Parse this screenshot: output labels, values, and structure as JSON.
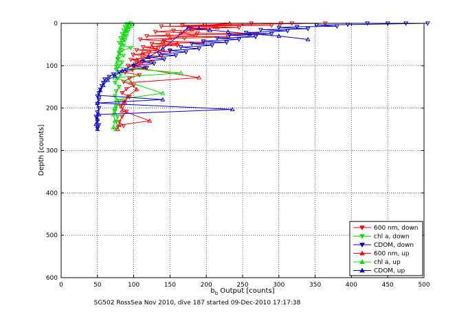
{
  "chart_data": {
    "type": "scatter",
    "xlabel_main": "b",
    "xlabel_sub": "b",
    "xlabel_rest": " Output [counts]",
    "ylabel": "Depth [counts]",
    "caption": "SG502 RossSea Nov 2010, dive 187 started 09-Dec-2010 17:17:38",
    "xlim": [
      0,
      500
    ],
    "ylim": [
      0,
      600
    ],
    "y_reversed": true,
    "grid": true,
    "grid_style": "dotted",
    "legend_position": "bottom-right",
    "x_ticks": [
      0,
      50,
      100,
      150,
      200,
      250,
      300,
      350,
      400,
      450,
      500
    ],
    "y_ticks": [
      0,
      100,
      200,
      300,
      400,
      500,
      600
    ],
    "series": [
      {
        "name": "600 nm, down",
        "color": "#ff0000",
        "marker": "triangle-down",
        "points": [
          [
            262,
            0
          ],
          [
            303,
            0
          ],
          [
            318,
            0
          ],
          [
            364,
            0
          ],
          [
            226,
            3
          ],
          [
            167,
            5
          ],
          [
            290,
            5
          ],
          [
            138,
            7
          ],
          [
            210,
            8
          ],
          [
            245,
            10
          ],
          [
            178,
            12
          ],
          [
            202,
            15
          ],
          [
            155,
            17
          ],
          [
            130,
            20
          ],
          [
            188,
            23
          ],
          [
            270,
            25
          ],
          [
            147,
            28
          ],
          [
            118,
            30
          ],
          [
            230,
            32
          ],
          [
            170,
            35
          ],
          [
            109,
            38
          ],
          [
            142,
            42
          ],
          [
            196,
            45
          ],
          [
            125,
            48
          ],
          [
            160,
            52
          ],
          [
            113,
            56
          ],
          [
            134,
            60
          ],
          [
            104,
            63
          ],
          [
            150,
            66
          ],
          [
            121,
            70
          ],
          [
            99,
            74
          ],
          [
            138,
            78
          ],
          [
            112,
            82
          ],
          [
            96,
            86
          ],
          [
            126,
            90
          ],
          [
            104,
            95
          ],
          [
            92,
            100
          ],
          [
            116,
            104
          ],
          [
            98,
            110
          ],
          [
            88,
            116
          ],
          [
            108,
            122
          ],
          [
            94,
            130
          ],
          [
            86,
            138
          ],
          [
            100,
            146
          ],
          [
            90,
            155
          ],
          [
            84,
            164
          ],
          [
            94,
            174
          ],
          [
            86,
            184
          ],
          [
            82,
            196
          ],
          [
            90,
            208
          ],
          [
            84,
            220
          ],
          [
            80,
            232
          ],
          [
            86,
            242
          ]
        ]
      },
      {
        "name": "chl a, down",
        "color": "#00dd00",
        "marker": "triangle-down",
        "points": [
          [
            96,
            0
          ],
          [
            90,
            2
          ],
          [
            98,
            5
          ],
          [
            88,
            8
          ],
          [
            94,
            12
          ],
          [
            86,
            16
          ],
          [
            92,
            20
          ],
          [
            84,
            25
          ],
          [
            90,
            30
          ],
          [
            82,
            35
          ],
          [
            88,
            40
          ],
          [
            80,
            46
          ],
          [
            86,
            52
          ],
          [
            96,
            58
          ],
          [
            84,
            64
          ],
          [
            80,
            70
          ],
          [
            86,
            76
          ],
          [
            78,
            84
          ],
          [
            84,
            92
          ],
          [
            80,
            100
          ],
          [
            76,
            110
          ],
          [
            82,
            120
          ],
          [
            78,
            130
          ],
          [
            74,
            140
          ],
          [
            80,
            150
          ],
          [
            76,
            160
          ],
          [
            74,
            172
          ],
          [
            80,
            184
          ],
          [
            76,
            196
          ],
          [
            74,
            208
          ],
          [
            78,
            220
          ],
          [
            76,
            232
          ],
          [
            78,
            244
          ],
          [
            74,
            250
          ]
        ]
      },
      {
        "name": "CDOM, down",
        "color": "#0000cc",
        "marker": "triangle-down",
        "points": [
          [
            422,
            0
          ],
          [
            450,
            0
          ],
          [
            475,
            0
          ],
          [
            505,
            0
          ],
          [
            395,
            3
          ],
          [
            352,
            4
          ],
          [
            380,
            7
          ],
          [
            325,
            8
          ],
          [
            300,
            10
          ],
          [
            340,
            13
          ],
          [
            275,
            15
          ],
          [
            312,
            18
          ],
          [
            255,
            22
          ],
          [
            290,
            25
          ],
          [
            232,
            28
          ],
          [
            268,
            32
          ],
          [
            215,
            35
          ],
          [
            245,
            38
          ],
          [
            196,
            42
          ],
          [
            228,
            45
          ],
          [
            180,
            48
          ],
          [
            208,
            52
          ],
          [
            165,
            56
          ],
          [
            190,
            60
          ],
          [
            150,
            64
          ],
          [
            172,
            68
          ],
          [
            135,
            72
          ],
          [
            158,
            76
          ],
          [
            122,
            80
          ],
          [
            142,
            85
          ],
          [
            112,
            90
          ],
          [
            128,
            95
          ],
          [
            100,
            100
          ],
          [
            118,
            105
          ],
          [
            90,
            110
          ],
          [
            80,
            115
          ],
          [
            72,
            120
          ],
          [
            66,
            126
          ],
          [
            60,
            132
          ],
          [
            58,
            140
          ],
          [
            56,
            148
          ],
          [
            54,
            156
          ],
          [
            52,
            164
          ],
          [
            50,
            172
          ],
          [
            52,
            180
          ],
          [
            50,
            190
          ],
          [
            52,
            200
          ],
          [
            50,
            210
          ],
          [
            48,
            220
          ],
          [
            50,
            230
          ],
          [
            52,
            240
          ],
          [
            50,
            248
          ]
        ]
      },
      {
        "name": "600 nm, up",
        "color": "#ff0000",
        "marker": "triangle-up",
        "points": [
          [
            232,
            0
          ],
          [
            196,
            5
          ],
          [
            215,
            10
          ],
          [
            180,
            15
          ],
          [
            165,
            22
          ],
          [
            185,
            28
          ],
          [
            150,
            35
          ],
          [
            140,
            42
          ],
          [
            160,
            48
          ],
          [
            125,
            55
          ],
          [
            132,
            62
          ],
          [
            112,
            70
          ],
          [
            120,
            78
          ],
          [
            104,
            86
          ],
          [
            110,
            94
          ],
          [
            100,
            104
          ],
          [
            190,
            128
          ],
          [
            96,
            140
          ],
          [
            104,
            156
          ],
          [
            92,
            172
          ],
          [
            88,
            188
          ],
          [
            84,
            206
          ],
          [
            122,
            230
          ],
          [
            80,
            240
          ],
          [
            78,
            250
          ]
        ]
      },
      {
        "name": "chl a, up",
        "color": "#00dd00",
        "marker": "triangle-up",
        "points": [
          [
            94,
            0
          ],
          [
            92,
            8
          ],
          [
            90,
            16
          ],
          [
            88,
            24
          ],
          [
            86,
            32
          ],
          [
            84,
            40
          ],
          [
            84,
            48
          ],
          [
            82,
            56
          ],
          [
            80,
            64
          ],
          [
            80,
            72
          ],
          [
            78,
            80
          ],
          [
            78,
            88
          ],
          [
            76,
            96
          ],
          [
            76,
            104
          ],
          [
            165,
            117
          ],
          [
            74,
            128
          ],
          [
            140,
            165
          ],
          [
            76,
            180
          ],
          [
            74,
            200
          ],
          [
            72,
            215
          ],
          [
            74,
            230
          ],
          [
            72,
            245
          ]
        ]
      },
      {
        "name": "CDOM, up",
        "color": "#0000cc",
        "marker": "triangle-up",
        "points": [
          [
            340,
            38
          ],
          [
            300,
            30
          ],
          [
            260,
            25
          ],
          [
            230,
            20
          ],
          [
            205,
            16
          ],
          [
            190,
            12
          ],
          [
            175,
            10
          ],
          [
            140,
            60
          ],
          [
            120,
            80
          ],
          [
            100,
            98
          ],
          [
            84,
            112
          ],
          [
            74,
            124
          ],
          [
            64,
            134
          ],
          [
            58,
            146
          ],
          [
            54,
            158
          ],
          [
            52,
            170
          ],
          [
            140,
            180
          ],
          [
            50,
            188
          ],
          [
            236,
            203
          ],
          [
            52,
            215
          ],
          [
            50,
            226
          ],
          [
            48,
            238
          ],
          [
            50,
            250
          ]
        ]
      }
    ]
  }
}
